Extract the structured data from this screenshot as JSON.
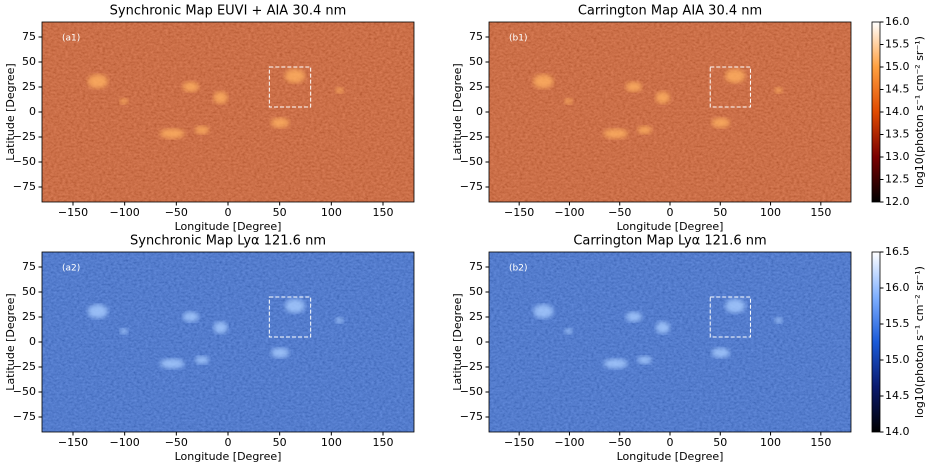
{
  "chart_data": [
    {
      "type": "image",
      "title": "Synchronic Map EUVI + AIA 30.4 nm",
      "panel_label": "(a1)",
      "xlabel": "Longitude [Degree]",
      "ylabel": "Latitude [Degree]",
      "xlim": [
        -180,
        180
      ],
      "ylim": [
        -90,
        90
      ],
      "xticks": [
        {
          "value": -150,
          "label": "−150"
        },
        {
          "value": -100,
          "label": "−100"
        },
        {
          "value": -50,
          "label": "−50"
        },
        0,
        50,
        100,
        150
      ],
      "yticks": [
        {
          "value": -75,
          "label": "−75"
        },
        {
          "value": -50,
          "label": "−50"
        },
        {
          "value": -25,
          "label": "−25"
        },
        0,
        25,
        50,
        75
      ],
      "color": "#d4460a",
      "blob_color": "#ffb060",
      "highlight_box": {
        "xlim": [
          40,
          80
        ],
        "ylim": [
          5,
          45
        ]
      }
    },
    {
      "type": "image",
      "title": "Carrington Map AIA 30.4 nm",
      "panel_label": "(b1)",
      "xlabel": "Longitude [Degree]",
      "ylabel": "Latitude [Degree]",
      "xlim": [
        -180,
        180
      ],
      "ylim": [
        -90,
        90
      ],
      "xticks": [
        {
          "value": -150,
          "label": "−150"
        },
        {
          "value": -100,
          "label": "−100"
        },
        {
          "value": -50,
          "label": "−50"
        },
        0,
        50,
        100,
        150
      ],
      "yticks": [
        {
          "value": -75,
          "label": "−75"
        },
        {
          "value": -50,
          "label": "−50"
        },
        {
          "value": -25,
          "label": "−25"
        },
        0,
        25,
        50,
        75
      ],
      "color": "#d4460a",
      "blob_color": "#ffb060",
      "highlight_box": {
        "xlim": [
          40,
          80
        ],
        "ylim": [
          5,
          45
        ]
      },
      "colorbar": {
        "label": "log10(photon s⁻¹ cm⁻² sr⁻¹)",
        "lim": [
          12,
          16
        ],
        "ticks": [
          {
            "value": 12,
            "label": "12.0"
          },
          12.5,
          {
            "value": 13,
            "label": "13.0"
          },
          13.5,
          {
            "value": 14,
            "label": "14.0"
          },
          14.5,
          {
            "value": 15,
            "label": "15.0"
          },
          15.5,
          {
            "value": 16,
            "label": "16.0"
          }
        ],
        "colormap": [
          "#000000",
          "#7a0000",
          "#e04a00",
          "#ffa040",
          "#ffffff"
        ]
      }
    },
    {
      "type": "image",
      "title": "Synchronic Map Lyα 121.6 nm",
      "panel_label": "(a2)",
      "xlabel": "Longitude [Degree]",
      "ylabel": "Latitude [Degree]",
      "xlim": [
        -180,
        180
      ],
      "ylim": [
        -90,
        90
      ],
      "xticks": [
        {
          "value": -150,
          "label": "−150"
        },
        {
          "value": -100,
          "label": "−100"
        },
        {
          "value": -50,
          "label": "−50"
        },
        0,
        50,
        100,
        150
      ],
      "yticks": [
        {
          "value": -75,
          "label": "−75"
        },
        {
          "value": -50,
          "label": "−50"
        },
        {
          "value": -25,
          "label": "−25"
        },
        0,
        25,
        50,
        75
      ],
      "color": "#1c5ad6",
      "blob_color": "#a8ccff",
      "highlight_box": {
        "xlim": [
          40,
          80
        ],
        "ylim": [
          5,
          45
        ]
      }
    },
    {
      "type": "image",
      "title": "Carrington Map Lyα 121.6 nm",
      "panel_label": "(b2)",
      "xlabel": "Longitude [Degree]",
      "ylabel": "Latitude [Degree]",
      "xlim": [
        -180,
        180
      ],
      "ylim": [
        -90,
        90
      ],
      "xticks": [
        {
          "value": -150,
          "label": "−150"
        },
        {
          "value": -100,
          "label": "−100"
        },
        {
          "value": -50,
          "label": "−50"
        },
        0,
        50,
        100,
        150
      ],
      "yticks": [
        {
          "value": -75,
          "label": "−75"
        },
        {
          "value": -50,
          "label": "−50"
        },
        {
          "value": -25,
          "label": "−25"
        },
        0,
        25,
        50,
        75
      ],
      "color": "#1c5ad6",
      "blob_color": "#a8ccff",
      "highlight_box": {
        "xlim": [
          40,
          80
        ],
        "ylim": [
          5,
          45
        ]
      },
      "colorbar": {
        "label": "log10(photon s⁻¹ cm⁻² sr⁻¹)",
        "lim": [
          14,
          16.5
        ],
        "ticks": [
          {
            "value": 14,
            "label": "14.0"
          },
          14.5,
          {
            "value": 15,
            "label": "15.0"
          },
          15.5,
          {
            "value": 16,
            "label": "16.0"
          },
          16.5
        ],
        "colormap": [
          "#000000",
          "#0a1a6e",
          "#1a5ad8",
          "#80b0ff",
          "#ffffff"
        ]
      }
    }
  ]
}
